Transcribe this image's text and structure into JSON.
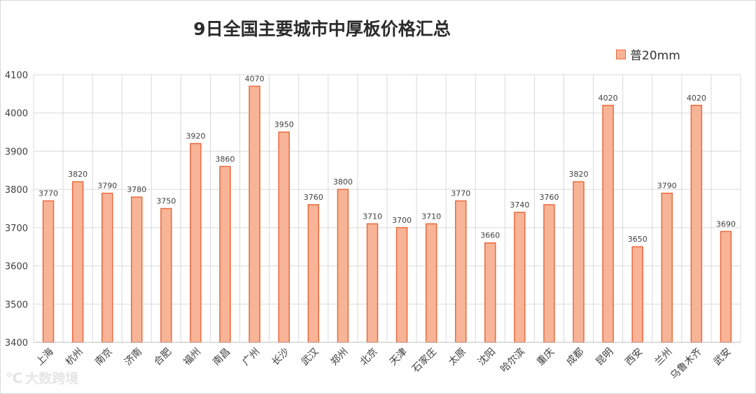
{
  "chart_data": {
    "type": "bar",
    "title": "9日全国主要城市中厚板价格汇总",
    "xlabel": "",
    "ylabel": "",
    "ylim": [
      3400,
      4100
    ],
    "yticks": [
      3400,
      3500,
      3600,
      3700,
      3800,
      3900,
      4000,
      4100
    ],
    "grid": true,
    "legend_position": "top-right",
    "categories": [
      "上海",
      "杭州",
      "南京",
      "济南",
      "合肥",
      "福州",
      "南昌",
      "广州",
      "长沙",
      "武汉",
      "郑州",
      "北京",
      "天津",
      "石家庄",
      "太原",
      "沈阳",
      "哈尔滨",
      "重庆",
      "成都",
      "昆明",
      "西安",
      "兰州",
      "乌鲁木齐",
      "武安"
    ],
    "series": [
      {
        "name": "普20mm",
        "values": [
          3770,
          3820,
          3790,
          3780,
          3750,
          3920,
          3860,
          4070,
          3950,
          3760,
          3800,
          3710,
          3700,
          3710,
          3770,
          3660,
          3740,
          3760,
          3820,
          4020,
          3650,
          3790,
          4020,
          3690
        ]
      }
    ],
    "colors": {
      "bar_fill": "#f8b496",
      "bar_stroke": "#e96a3e",
      "grid": "#d9d9d9"
    }
  },
  "watermark": {
    "logo": "℃",
    "text": "大数跨境"
  }
}
